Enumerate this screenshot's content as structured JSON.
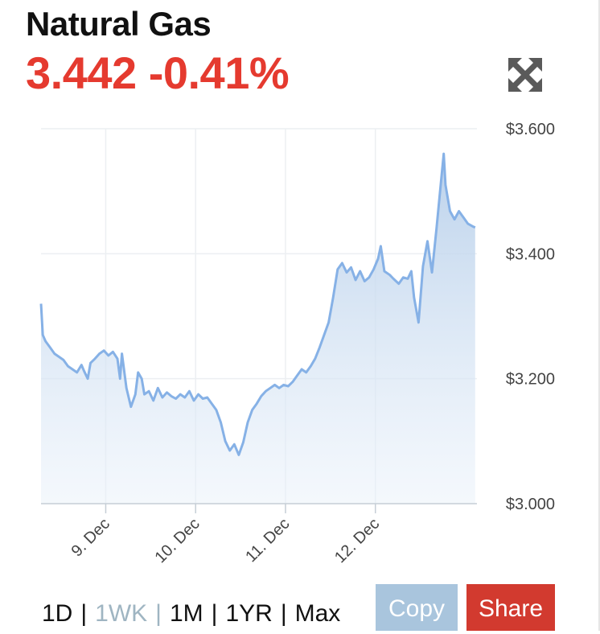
{
  "header": {
    "title": "Natural Gas",
    "quote": "3.442 -0.41%",
    "expand_icon": "expand-arrows-icon"
  },
  "colors": {
    "quote": "#e53a2f",
    "line": "#86b1e6",
    "fill_top": "#b7cfea",
    "copy_button": "#a9c5dd",
    "share_button": "#d23a2f",
    "active_range": "#9fb5c2"
  },
  "chart_data": {
    "type": "area",
    "title": "",
    "ylim": [
      3.0,
      3.6
    ],
    "y_ticks": [
      "$3.600",
      "$3.400",
      "$3.200",
      "$3.000"
    ],
    "y_tick_values": [
      3.6,
      3.4,
      3.2,
      3.0
    ],
    "x_ticks": [
      "9. Dec",
      "10. Dec",
      "11. Dec",
      "12. Dec"
    ],
    "x_tick_values": [
      0.72,
      1.72,
      2.72,
      3.72
    ],
    "xlim": [
      0.0,
      4.85
    ],
    "grid": true,
    "series": [
      {
        "points": [
          [
            0.0,
            3.32
          ],
          [
            0.02,
            3.27
          ],
          [
            0.05,
            3.26
          ],
          [
            0.1,
            3.25
          ],
          [
            0.15,
            3.24
          ],
          [
            0.2,
            3.235
          ],
          [
            0.25,
            3.23
          ],
          [
            0.3,
            3.22
          ],
          [
            0.35,
            3.215
          ],
          [
            0.4,
            3.21
          ],
          [
            0.45,
            3.222
          ],
          [
            0.48,
            3.212
          ],
          [
            0.52,
            3.2
          ],
          [
            0.55,
            3.225
          ],
          [
            0.6,
            3.232
          ],
          [
            0.65,
            3.24
          ],
          [
            0.7,
            3.245
          ],
          [
            0.75,
            3.237
          ],
          [
            0.8,
            3.243
          ],
          [
            0.85,
            3.232
          ],
          [
            0.88,
            3.2
          ],
          [
            0.9,
            3.24
          ],
          [
            0.95,
            3.185
          ],
          [
            1.0,
            3.155
          ],
          [
            1.05,
            3.175
          ],
          [
            1.08,
            3.21
          ],
          [
            1.12,
            3.2
          ],
          [
            1.15,
            3.175
          ],
          [
            1.2,
            3.18
          ],
          [
            1.25,
            3.165
          ],
          [
            1.3,
            3.185
          ],
          [
            1.35,
            3.17
          ],
          [
            1.4,
            3.178
          ],
          [
            1.45,
            3.172
          ],
          [
            1.5,
            3.168
          ],
          [
            1.55,
            3.175
          ],
          [
            1.6,
            3.17
          ],
          [
            1.65,
            3.18
          ],
          [
            1.7,
            3.165
          ],
          [
            1.75,
            3.175
          ],
          [
            1.8,
            3.168
          ],
          [
            1.85,
            3.17
          ],
          [
            1.9,
            3.16
          ],
          [
            1.95,
            3.15
          ],
          [
            2.0,
            3.13
          ],
          [
            2.05,
            3.1
          ],
          [
            2.1,
            3.085
          ],
          [
            2.15,
            3.095
          ],
          [
            2.2,
            3.078
          ],
          [
            2.25,
            3.098
          ],
          [
            2.3,
            3.13
          ],
          [
            2.35,
            3.15
          ],
          [
            2.4,
            3.16
          ],
          [
            2.45,
            3.172
          ],
          [
            2.5,
            3.18
          ],
          [
            2.55,
            3.185
          ],
          [
            2.6,
            3.19
          ],
          [
            2.65,
            3.185
          ],
          [
            2.7,
            3.19
          ],
          [
            2.75,
            3.188
          ],
          [
            2.8,
            3.195
          ],
          [
            2.85,
            3.205
          ],
          [
            2.9,
            3.215
          ],
          [
            2.95,
            3.21
          ],
          [
            3.0,
            3.22
          ],
          [
            3.05,
            3.232
          ],
          [
            3.1,
            3.25
          ],
          [
            3.15,
            3.27
          ],
          [
            3.2,
            3.29
          ],
          [
            3.25,
            3.33
          ],
          [
            3.3,
            3.375
          ],
          [
            3.35,
            3.385
          ],
          [
            3.4,
            3.37
          ],
          [
            3.45,
            3.378
          ],
          [
            3.5,
            3.358
          ],
          [
            3.55,
            3.372
          ],
          [
            3.6,
            3.356
          ],
          [
            3.65,
            3.362
          ],
          [
            3.7,
            3.375
          ],
          [
            3.75,
            3.392
          ],
          [
            3.78,
            3.412
          ],
          [
            3.82,
            3.372
          ],
          [
            3.88,
            3.366
          ],
          [
            3.92,
            3.36
          ],
          [
            3.98,
            3.352
          ],
          [
            4.03,
            3.362
          ],
          [
            4.08,
            3.36
          ],
          [
            4.12,
            3.372
          ],
          [
            4.15,
            3.33
          ],
          [
            4.2,
            3.29
          ],
          [
            4.25,
            3.38
          ],
          [
            4.3,
            3.42
          ],
          [
            4.35,
            3.37
          ],
          [
            4.4,
            3.44
          ],
          [
            4.45,
            3.515
          ],
          [
            4.48,
            3.56
          ],
          [
            4.5,
            3.51
          ],
          [
            4.55,
            3.468
          ],
          [
            4.6,
            3.455
          ],
          [
            4.65,
            3.468
          ],
          [
            4.7,
            3.458
          ],
          [
            4.75,
            3.448
          ],
          [
            4.8,
            3.444
          ],
          [
            4.83,
            3.442
          ]
        ]
      }
    ]
  },
  "controls": {
    "ranges": [
      "1D",
      "1WK",
      "1M",
      "1YR",
      "Max"
    ],
    "active_range": "1WK",
    "separator": "|",
    "copy_label": "Copy",
    "share_label": "Share"
  }
}
